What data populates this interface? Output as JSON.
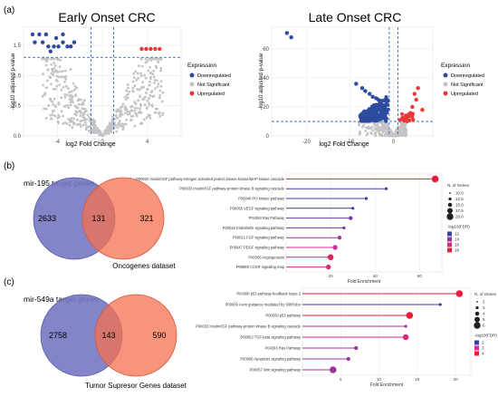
{
  "panels": {
    "a": "(a)",
    "b": "(b)",
    "c": "(c)"
  },
  "chart_data": [
    {
      "id": "volcano-early",
      "type": "scatter",
      "title": "Early Onset CRC",
      "xlabel": "log2 Fold Change",
      "ylabel": "-log10 adjusted p-value",
      "xlim": [
        -7,
        7
      ],
      "ylim": [
        0,
        1.8
      ],
      "x_ticks": [
        -4,
        0,
        4
      ],
      "y_ticks": [
        0.0,
        0.5,
        1.0,
        1.5
      ],
      "y_tick_labels": [
        "0.0",
        "0.5",
        "1.0",
        "1.5"
      ],
      "thresholds": {
        "x": [
          -1,
          1
        ],
        "y": 1.3
      },
      "legend": {
        "title": "Expression",
        "items": [
          "Downregulated",
          "Not Significant",
          "Upregulated"
        ]
      },
      "colors": {
        "down": "#2c4a9e",
        "ns": "#c4c4c4",
        "up": "#e8383a"
      },
      "down_points": [
        [
          -6.2,
          1.68
        ],
        [
          -5.6,
          1.68
        ],
        [
          -5.0,
          1.68
        ],
        [
          -6.0,
          1.55
        ],
        [
          -5.3,
          1.55
        ],
        [
          -4.8,
          1.48
        ],
        [
          -4.3,
          1.48
        ],
        [
          -3.9,
          1.48
        ],
        [
          -3.5,
          1.55
        ],
        [
          -3.1,
          1.48
        ],
        [
          -2.8,
          1.48
        ],
        [
          -3.5,
          1.68
        ],
        [
          -4.1,
          1.62
        ],
        [
          -2.5,
          1.55
        ],
        [
          -4.6,
          1.4
        ]
      ],
      "up_points": [
        [
          3.5,
          1.44
        ],
        [
          3.9,
          1.44
        ],
        [
          4.3,
          1.44
        ],
        [
          4.7,
          1.44
        ],
        [
          5.1,
          1.44
        ]
      ]
    },
    {
      "id": "volcano-late",
      "type": "scatter",
      "title": "Late Onset CRC",
      "xlabel": "log2 Fold Change",
      "ylabel": "-log10 adjusted p-value",
      "xlim": [
        -28,
        9
      ],
      "ylim": [
        0,
        75
      ],
      "x_ticks": [
        -20,
        -10,
        0
      ],
      "y_ticks": [
        0,
        20,
        40,
        60
      ],
      "y_tick_labels": [
        "0",
        "20",
        "40",
        "60"
      ],
      "thresholds": {
        "x": [
          -1,
          1
        ],
        "y": 10
      },
      "legend": {
        "title": "Expression",
        "items": [
          "Downregulated",
          "Not Significant",
          "Upregulated"
        ]
      },
      "colors": {
        "down": "#2c4a9e",
        "ns": "#c4c4c4",
        "up": "#e8383a"
      },
      "down_points": [
        [
          -24.5,
          71
        ],
        [
          -23.5,
          68
        ],
        [
          -8.6,
          36
        ],
        [
          -7.2,
          33
        ],
        [
          -6.5,
          31
        ],
        [
          -5.5,
          29
        ],
        [
          -4.8,
          27
        ],
        [
          -4.0,
          26
        ],
        [
          -3.5,
          25
        ],
        [
          -3.0,
          24
        ]
      ],
      "up_points": [
        [
          5.6,
          33
        ],
        [
          4.8,
          29
        ],
        [
          5.2,
          25
        ],
        [
          6.6,
          18
        ],
        [
          4.3,
          20
        ],
        [
          3.5,
          15
        ],
        [
          2.8,
          14
        ],
        [
          2.2,
          12
        ]
      ]
    },
    {
      "id": "venn-195",
      "type": "venn",
      "title": "mir-195 target genes",
      "set_b_label": "Oncogenes dataset",
      "left_only": "2633",
      "overlap": "131",
      "right_only": "321"
    },
    {
      "id": "enrich-195",
      "type": "dot",
      "xlabel": "Fold Enrichment",
      "xlim": [
        0,
        70
      ],
      "x_ticks": [
        20,
        40,
        60
      ],
      "categories": [
        "P00032 Insulin/IGF pathway-mitogen activated protein kinase kinase/MAP kinase cascade",
        "P00033 Insulin/IGF pathway-protein kinase B signaling cascade",
        "P00048 PI3 kinase pathway",
        "P00056 VEGF signaling pathway",
        "P04393 Ras Pathway",
        "P00019 Endothelin signaling pathway",
        "P00021 FGF signaling pathway",
        "P00047 PDGF signaling pathway",
        "P00005 Angiogenesis",
        "P06959 CCKR signaling map"
      ],
      "values": [
        67,
        45,
        36,
        30,
        29,
        26,
        24,
        22,
        20,
        19
      ],
      "n_genes": [
        20,
        10,
        10,
        10,
        12.5,
        10,
        12.5,
        15,
        17.5,
        15
      ],
      "fdr": [
        18,
        12,
        12,
        12,
        13,
        13,
        14,
        15,
        17,
        16
      ],
      "legend_size": {
        "title": "N. of Genes",
        "items": [
          "10.0",
          "12.5",
          "15.0",
          "17.5",
          "20.0"
        ]
      },
      "legend_color": {
        "title": "-log10(FDR)",
        "items": [
          "12",
          "14",
          "16",
          "18"
        ]
      }
    },
    {
      "id": "venn-549a",
      "type": "venn",
      "title": "mir-549a target genes",
      "set_b_label": "Tumor Supresor Genes dataset",
      "left_only": "2758",
      "overlap": "143",
      "right_only": "590"
    },
    {
      "id": "enrich-549a",
      "type": "dot",
      "xlabel": "Fold Enrichment",
      "xlim": [
        0,
        22
      ],
      "x_ticks": [
        5,
        10,
        15,
        20
      ],
      "categories": [
        "P04398 p53 pathway feedback loops 2",
        "P00009 Axon guidance mediated by Slit/Robo",
        "P00059 p53 pathway",
        "P00033 Insulin/IGF pathway-protein kinase B signaling cascade",
        "P00052 TGF-beta signaling pathway",
        "P04393 Ras Pathway",
        "P00006 Apoptosis signaling pathway",
        "P00057 Wnt signaling pathway"
      ],
      "values": [
        20.5,
        18,
        14,
        13.5,
        13.5,
        7,
        6,
        4
      ],
      "n_genes": [
        6,
        2,
        6,
        2,
        5,
        3,
        3,
        6
      ],
      "fdr": [
        4,
        1,
        4,
        2,
        3,
        2,
        2,
        2
      ],
      "legend_size": {
        "title": "N. of Genes",
        "items": [
          "2",
          "3",
          "4",
          "5",
          "6"
        ]
      },
      "legend_color": {
        "title": "-log10(FDR)",
        "items": [
          "2",
          "3",
          "4"
        ]
      }
    }
  ]
}
